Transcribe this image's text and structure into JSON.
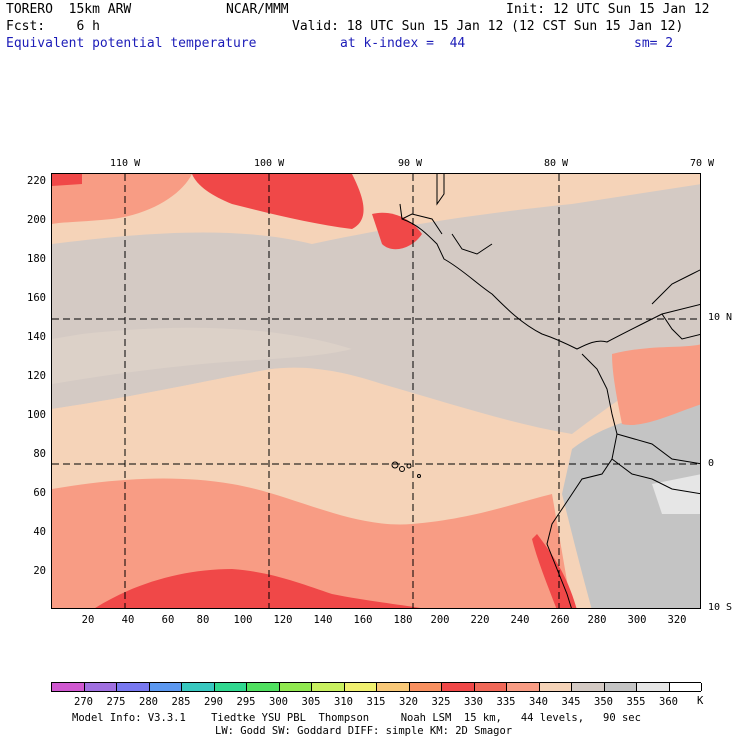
{
  "header": {
    "model": "TORERO  15km ARW",
    "center": "NCAR/MMM",
    "init": "Init: 12 UTC Sun 15 Jan 12",
    "fcst": "Fcst:    6 h",
    "valid": "Valid: 18 UTC Sun 15 Jan 12 (12 CST Sun 15 Jan 12)",
    "field": "Equivalent potential temperature",
    "level": "at k-index =  44",
    "smoothing": "sm= 2"
  },
  "map": {
    "lon_labels": [
      "110 W",
      "100 W",
      "90 W",
      "80 W",
      "70 W"
    ],
    "lat_labels": [
      "10 N",
      "0",
      "10 S"
    ],
    "y_ticks": [
      "220",
      "200",
      "180",
      "160",
      "140",
      "120",
      "100",
      "80",
      "60",
      "40",
      "20"
    ],
    "x_ticks": [
      "20",
      "40",
      "60",
      "80",
      "100",
      "120",
      "140",
      "160",
      "180",
      "200",
      "220",
      "240",
      "260",
      "280",
      "300",
      "320"
    ],
    "colors": {
      "land_outline": "#000000",
      "gridline": "#000000"
    }
  },
  "colorbar": {
    "unit": "K",
    "labels": [
      "270",
      "275",
      "280",
      "285",
      "290",
      "295",
      "300",
      "305",
      "310",
      "315",
      "320",
      "325",
      "330",
      "335",
      "340",
      "345",
      "350",
      "355",
      "360"
    ],
    "colors": [
      "#d058d0",
      "#a070e0",
      "#7878f0",
      "#5c98f0",
      "#38c8c0",
      "#30d890",
      "#50e060",
      "#90e850",
      "#c8f060",
      "#f0f070",
      "#f8c878",
      "#f89060",
      "#f04848",
      "#f06858",
      "#f89c84",
      "#f5d3b8",
      "#d4cac4",
      "#c4c4c4",
      "#e6e6e6",
      "#ffffff"
    ]
  },
  "footer": {
    "line1": "Model Info: V3.3.1    Tiedtke YSU PBL  Thompson     Noah LSM  15 km,   44 levels,   90 sec",
    "line2": "LW: Godd SW: Goddard DIFF: simple KM: 2D Smagor"
  }
}
